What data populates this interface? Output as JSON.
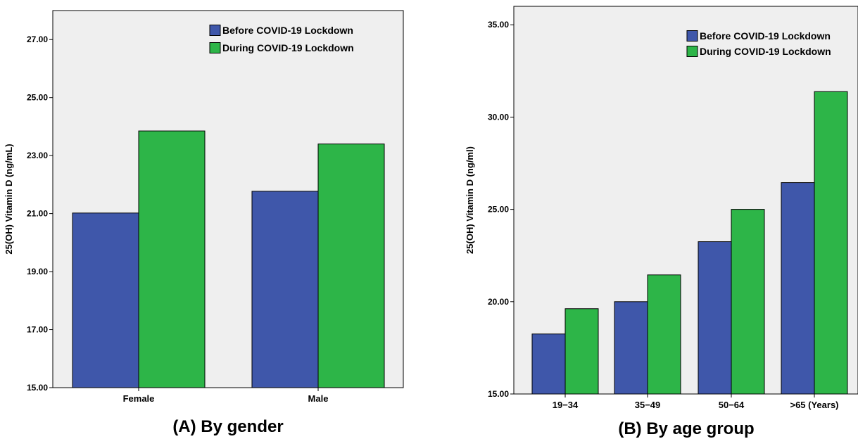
{
  "colors": {
    "before": "#3f57aa",
    "during": "#2db548",
    "plot_bg": "#efefef"
  },
  "chart_data": [
    {
      "type": "bar",
      "title": "(A) By gender",
      "ylabel": "25(OH) Vitamin D (ng/mL)",
      "xlabel": "",
      "ylim": [
        15,
        28
      ],
      "yticks": [
        15,
        17,
        19,
        21,
        23,
        25,
        27
      ],
      "ytick_labels": [
        "15.00",
        "17.00",
        "19.00",
        "21.00",
        "23.00",
        "25.00",
        "27.00"
      ],
      "categories": [
        "Female",
        "Male"
      ],
      "series": [
        {
          "name": "Before COVID-19 Lockdown",
          "values": [
            21.02,
            21.77
          ]
        },
        {
          "name": "During COVID-19 Lockdown",
          "values": [
            23.85,
            23.4
          ]
        }
      ],
      "legend": "top-right",
      "grid": false
    },
    {
      "type": "bar",
      "title": "(B) By age group",
      "ylabel": "25(OH) Vitamin D (ng/ml)",
      "xlabel": "",
      "ylim": [
        15,
        36
      ],
      "yticks": [
        15,
        20,
        25,
        30,
        35
      ],
      "ytick_labels": [
        "15.00",
        "20.00",
        "25.00",
        "30.00",
        "35.00"
      ],
      "categories": [
        "19−34",
        "35−49",
        "50−64",
        ">65 (Years)"
      ],
      "series": [
        {
          "name": "Before COVID-19 Lockdown",
          "values": [
            18.25,
            20.0,
            23.25,
            26.45
          ]
        },
        {
          "name": "During COVID-19 Lockdown",
          "values": [
            19.62,
            21.45,
            25.0,
            31.38
          ]
        }
      ],
      "legend": "top-right",
      "grid": false
    }
  ]
}
